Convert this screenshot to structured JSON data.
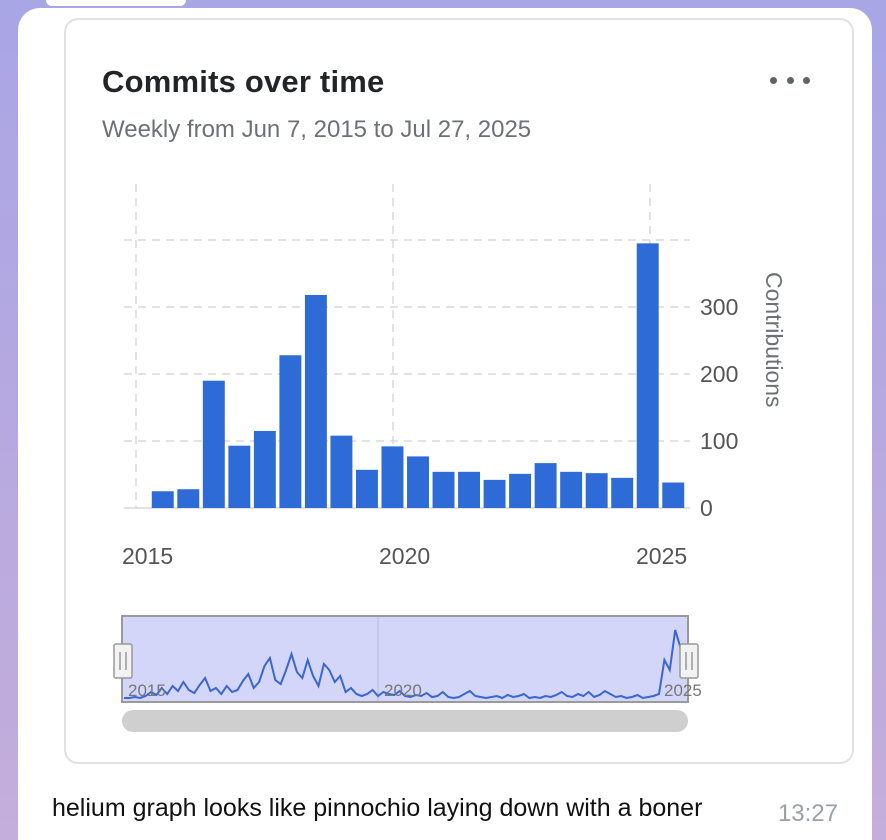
{
  "card": {
    "title": "Commits over time",
    "subtitle": "Weekly from Jun 7, 2015 to Jul 27, 2025",
    "more_icon": "more-horizontal-icon"
  },
  "chart_data": {
    "type": "bar",
    "ylabel": "Contributions",
    "ylim": [
      0,
      400
    ],
    "yticks": [
      0,
      100,
      200,
      300
    ],
    "xticks": [
      "2015",
      "2020",
      "2025"
    ],
    "grid": true,
    "y_axis_position": "right",
    "bar_color": "#2f6bd6",
    "values": [
      25,
      28,
      190,
      93,
      115,
      228,
      318,
      108,
      57,
      92,
      77,
      54,
      54,
      42,
      51,
      67,
      54,
      52,
      45,
      395,
      38
    ]
  },
  "navigator": {
    "labels": [
      "2015",
      "2020",
      "2025"
    ],
    "handle_icon": "drag-handle-icon"
  },
  "message": {
    "text": "helium graph looks like pinnochio laying down with a boner",
    "time": "13:27"
  }
}
